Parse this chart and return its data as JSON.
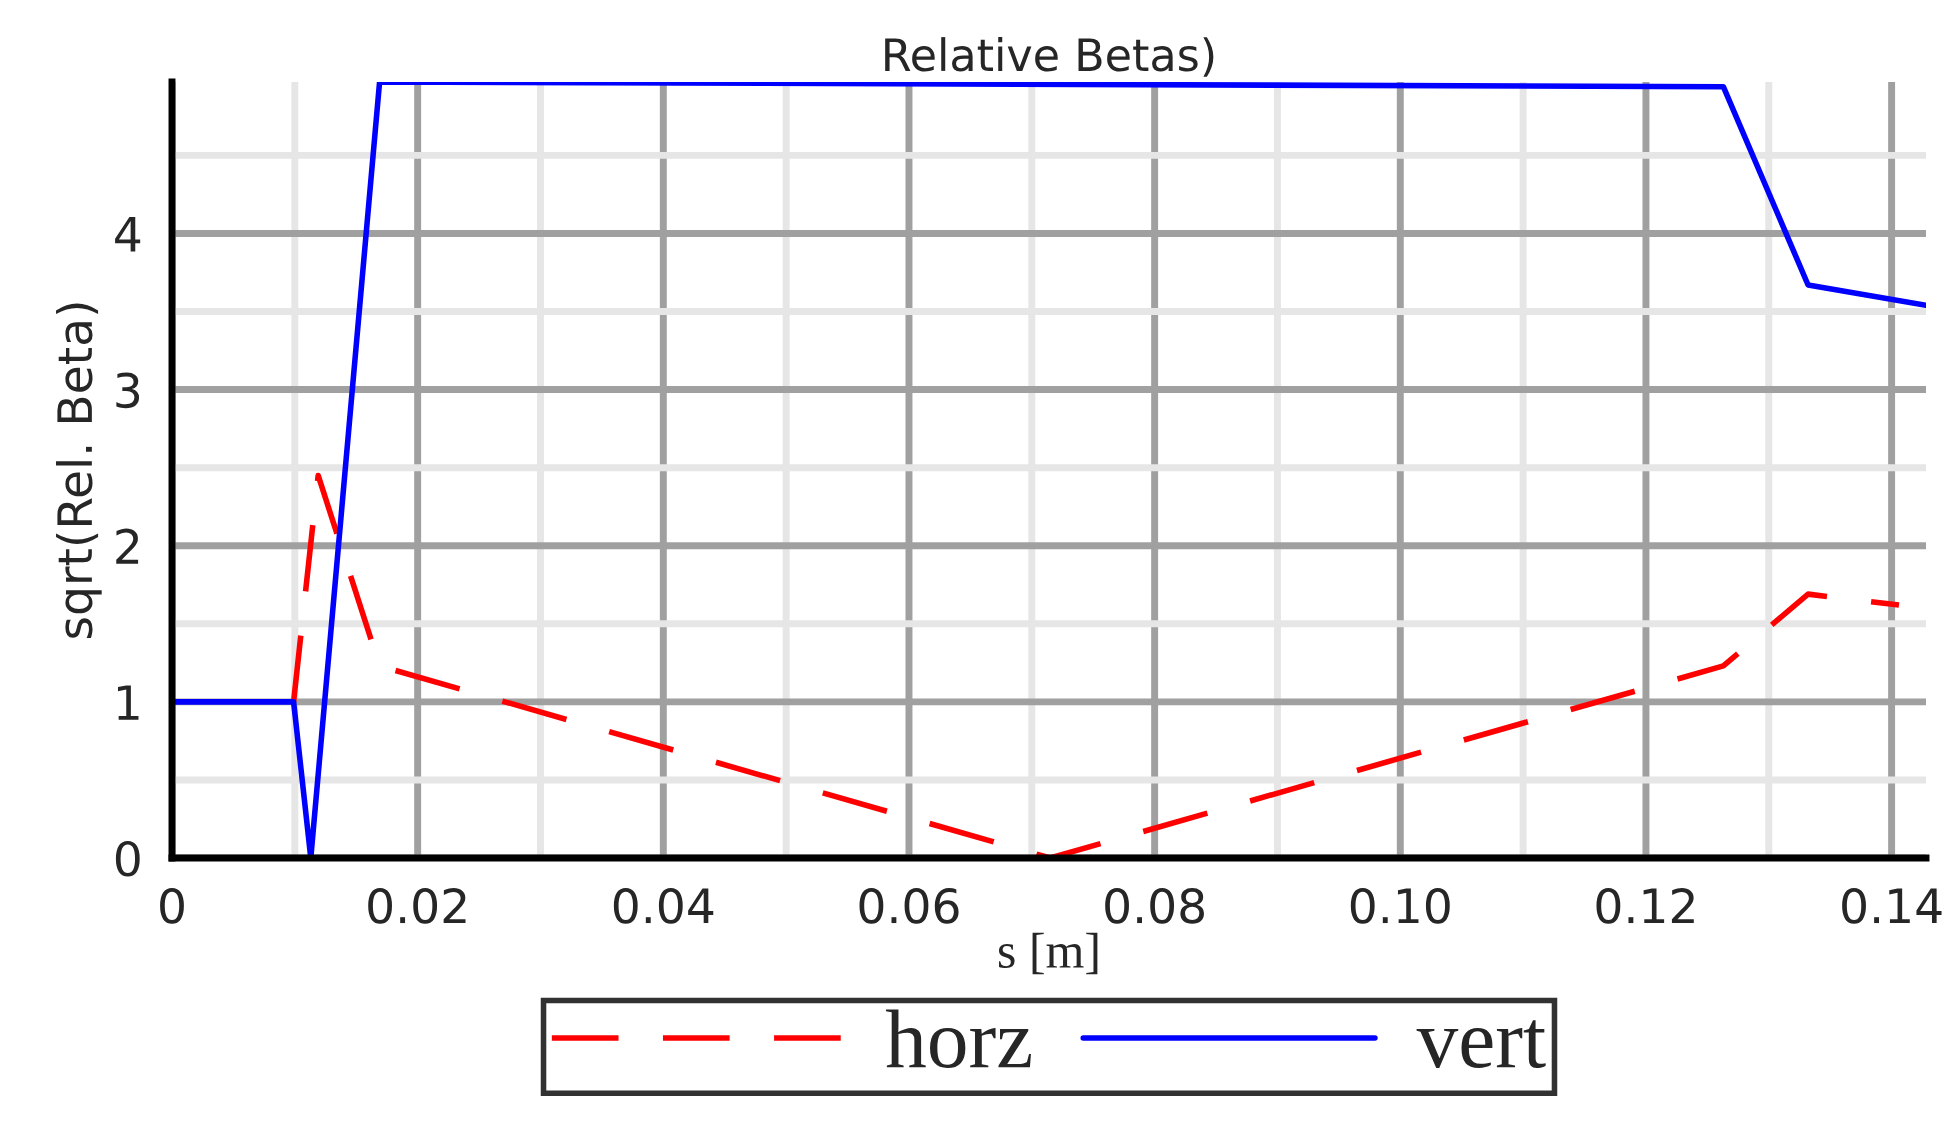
{
  "chart_data": {
    "type": "line",
    "title": "Relative Betas)",
    "xlabel": "s [m]",
    "ylabel": "sqrt(Rel. Beta)",
    "xlim": [
      0,
      0.1428
    ],
    "xticks": [
      {
        "value": 0,
        "label": "0"
      },
      {
        "value": 0.02,
        "label": "0.02"
      },
      {
        "value": 0.04,
        "label": "0.04"
      },
      {
        "value": 0.06,
        "label": "0.06"
      },
      {
        "value": 0.08,
        "label": "0.08"
      },
      {
        "value": 0.1,
        "label": "0.10"
      },
      {
        "value": 0.12,
        "label": "0.12"
      },
      {
        "value": 0.14,
        "label": "0.14"
      }
    ],
    "ylim": [
      0,
      4.97
    ],
    "yticks": [
      0,
      1,
      2,
      3,
      4
    ],
    "grid": true,
    "legend": "bottom",
    "series": [
      {
        "name": "horz",
        "color": "#ff0000",
        "line_style": "dashed",
        "x": [
          0.0099,
          0.0119,
          0.0169,
          0.0715,
          0.1263,
          0.1332,
          0.1406
        ],
        "values": [
          1,
          2.45,
          1.23,
          0,
          1.23,
          1.69,
          1.62
        ]
      },
      {
        "name": "vert",
        "color": "#0000ff",
        "line_style": "solid",
        "x": [
          0,
          0.0099,
          0.0113,
          0.0169,
          0.1263,
          0.1332,
          0.1428
        ],
        "values": [
          1,
          1,
          0,
          4.97,
          4.94,
          3.67,
          3.54
        ]
      }
    ]
  }
}
